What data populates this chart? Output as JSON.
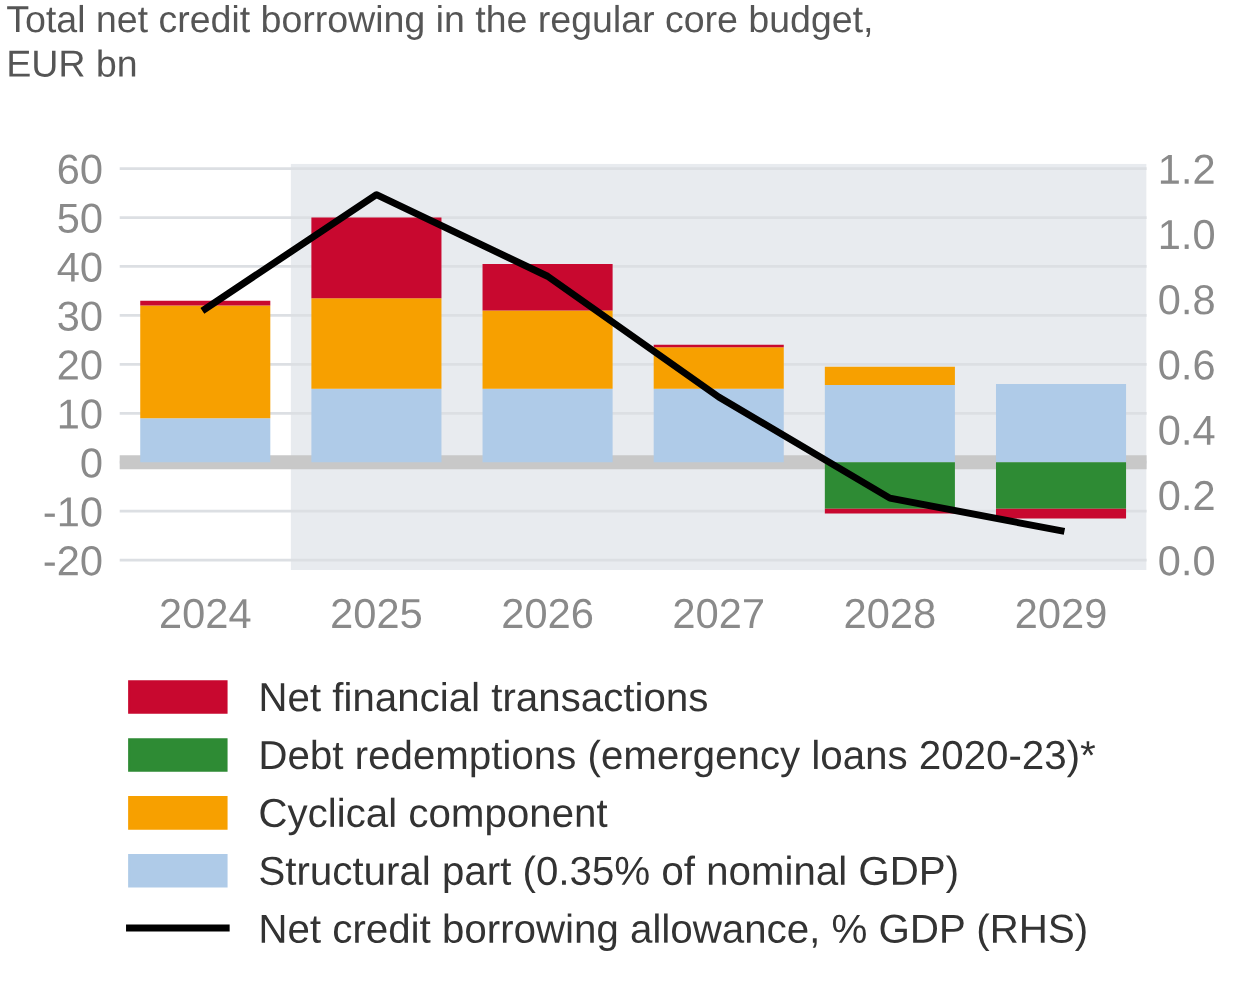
{
  "chart_data": {
    "type": "bar",
    "stacked": true,
    "title": "Total net credit borrowing in the regular core budget,\nEUR bn",
    "categories": [
      "2024",
      "2025",
      "2026",
      "2027",
      "2028",
      "2029"
    ],
    "series": [
      {
        "name": "Structural part (0.35% of nominal GDP)",
        "color": "#afcbe8",
        "values": [
          9,
          15,
          15,
          15,
          15.8,
          16
        ]
      },
      {
        "name": "Cyclical component",
        "color": "#f7a000",
        "values": [
          23,
          18.5,
          16,
          8.5,
          3.7,
          0
        ]
      },
      {
        "name": "Debt redemptions (emergency loans 2020-23)*",
        "color": "#2e8b34",
        "values": [
          0,
          0,
          0,
          0,
          -9.5,
          -9.5
        ]
      },
      {
        "name": "Net financial transactions",
        "color": "#c8082f",
        "values": [
          1,
          16.5,
          9.5,
          0.5,
          -1,
          -2
        ]
      },
      {
        "name": "Net credit borrowing allowance, % GDP (RHS)",
        "type": "line",
        "axis": "y2",
        "color": "#000000",
        "values": [
          0.77,
          1.12,
          0.87,
          0.5,
          0.19,
          0.09
        ]
      }
    ],
    "ylim": [
      -22,
      61
    ],
    "yticks": [
      -20,
      -10,
      0,
      10,
      20,
      30,
      40,
      50,
      60
    ],
    "y2lim": [
      -0.03,
      1.215
    ],
    "y2ticks": [
      {
        "value": 0,
        "label": "0.0"
      },
      0.2,
      0.4,
      0.6,
      0.8,
      {
        "value": 1,
        "label": "1.0"
      },
      1.2
    ],
    "ref_lines": [
      {
        "axis": "y",
        "value": 0,
        "color": "#c8c8c8"
      }
    ],
    "bands": [
      {
        "axis": "x",
        "from": "2025",
        "to": "2029",
        "color": "#e8ebef"
      }
    ],
    "grid": "y",
    "legend": "bottom",
    "marker": "none",
    "line_style": "solid"
  }
}
